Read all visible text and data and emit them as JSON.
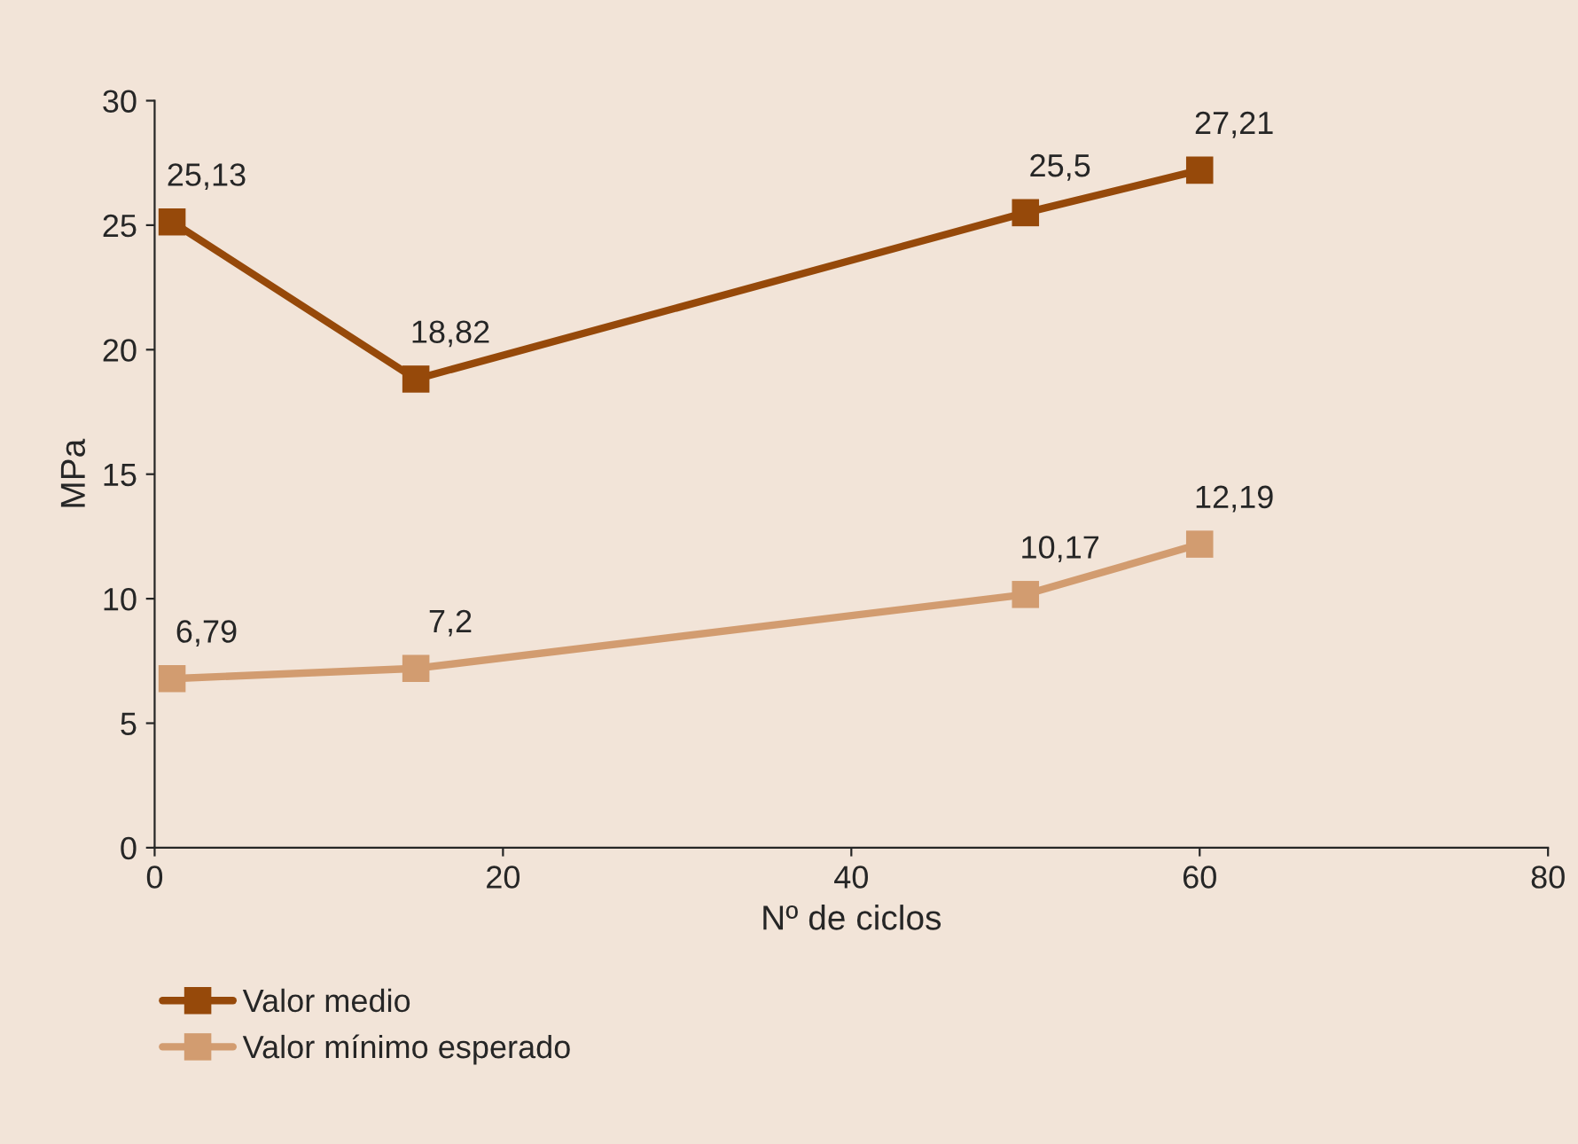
{
  "chart_data": {
    "type": "line",
    "xlabel": "Nº de ciclos",
    "ylabel": "MPa",
    "x": [
      1,
      15,
      50,
      60
    ],
    "xlim": [
      0,
      80
    ],
    "xticks": [
      0,
      20,
      40,
      60,
      80
    ],
    "ylim": [
      0,
      30
    ],
    "yticks": [
      0,
      5,
      10,
      15,
      20,
      25,
      30
    ],
    "marker": "square",
    "line_style": "solid",
    "grid": false,
    "legend": "bottom",
    "series": [
      {
        "name": "Valor medio",
        "color": "#96490a",
        "values": [
          25.13,
          18.82,
          25.5,
          27.21
        ],
        "value_labels": [
          "25,13",
          "18,82",
          "25,5",
          "27,21"
        ]
      },
      {
        "name": "Valor mínimo esperado",
        "color": "#d29c70",
        "values": [
          6.79,
          7.2,
          10.17,
          12.19
        ],
        "value_labels": [
          "6,79",
          "7,2",
          "10,17",
          "12,19"
        ]
      }
    ]
  }
}
